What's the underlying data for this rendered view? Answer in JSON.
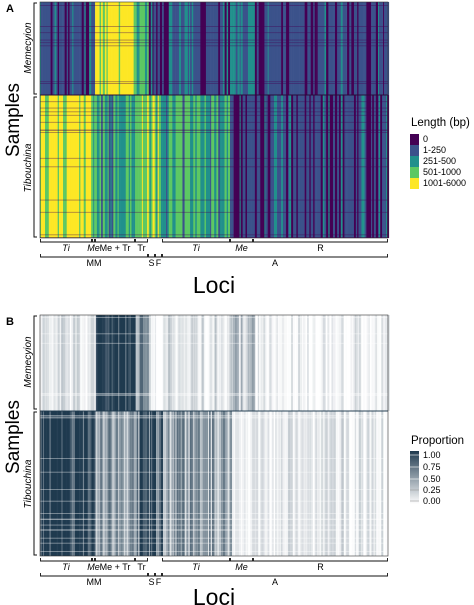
{
  "chart_data": [
    {
      "type": "heatmap",
      "panel": "A",
      "xlabel": "Loci",
      "ylabel": "Samples",
      "row_groups": [
        "Memecyion",
        "Tibouchina"
      ],
      "column_groups_level1": [
        "Ti",
        "Me",
        "Me + Tr",
        "Tr",
        "Ti",
        "Me",
        "R"
      ],
      "column_groups_level2": [
        "MM",
        "S",
        "F",
        "A"
      ],
      "legend": {
        "title": "Length (bp)",
        "categories": [
          "0",
          "1-250",
          "251-500",
          "501-1000",
          "1001-6000"
        ],
        "colors": [
          "#440154",
          "#3b528b",
          "#21908c",
          "#5dc863",
          "#fde725"
        ]
      }
    },
    {
      "type": "heatmap",
      "panel": "B",
      "xlabel": "Loci",
      "ylabel": "Samples",
      "row_groups": [
        "Memecyion",
        "Tibouchina"
      ],
      "column_groups_level1": [
        "Ti",
        "Me",
        "Me + Tr",
        "Tr",
        "Ti",
        "Me",
        "R"
      ],
      "column_groups_level2": [
        "MM",
        "S",
        "F",
        "A"
      ],
      "legend": {
        "title": "Proportion",
        "ticks": [
          "1.00",
          "0.75",
          "0.50",
          "0.25",
          "0.00"
        ],
        "colors": [
          "#1f3a4f",
          "#ffffff"
        ]
      }
    }
  ]
}
